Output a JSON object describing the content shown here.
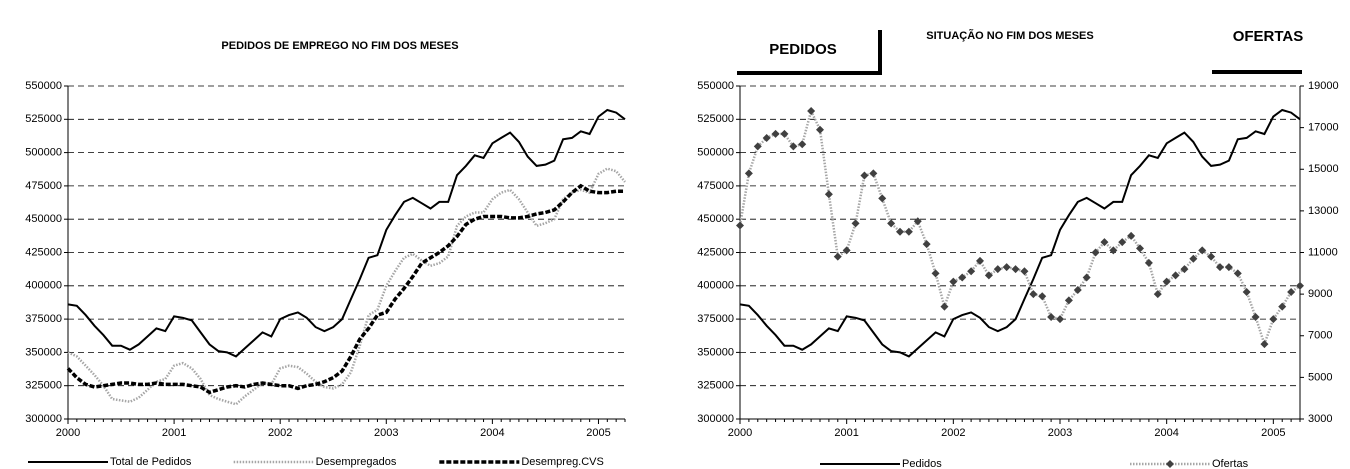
{
  "chart_data": [
    {
      "type": "line",
      "title": "PEDIDOS DE EMPREGO NO FIM DOS MESES",
      "categories": [
        "2000",
        null,
        null,
        null,
        null,
        null,
        null,
        null,
        null,
        null,
        null,
        null,
        "2001",
        null,
        null,
        null,
        null,
        null,
        null,
        null,
        null,
        null,
        null,
        null,
        "2002",
        null,
        null,
        null,
        null,
        null,
        null,
        null,
        null,
        null,
        null,
        null,
        "2003",
        null,
        null,
        null,
        null,
        null,
        null,
        null,
        null,
        null,
        null,
        null,
        "2004",
        null,
        null,
        null,
        null,
        null,
        null,
        null,
        null,
        null,
        null,
        null,
        "2005",
        null,
        null,
        null
      ],
      "ylim": [
        300000,
        550000
      ],
      "yticks": [
        300000,
        325000,
        350000,
        375000,
        400000,
        425000,
        450000,
        475000,
        500000,
        525000,
        550000
      ],
      "grid": true,
      "series": [
        {
          "name": "Total de Pedidos",
          "color": "#000000",
          "dash": "solid",
          "values": [
            386000,
            385000,
            378000,
            370000,
            363000,
            355000,
            355000,
            352000,
            356000,
            362000,
            368000,
            366000,
            377000,
            376000,
            374000,
            365000,
            356000,
            351000,
            350000,
            347000,
            353000,
            359000,
            365000,
            362000,
            375000,
            378000,
            380000,
            376000,
            369000,
            366000,
            369000,
            375000,
            390000,
            405000,
            421000,
            423000,
            442000,
            453000,
            463000,
            466000,
            462000,
            458000,
            463000,
            463000,
            483000,
            490000,
            498000,
            496000,
            507000,
            511000,
            515000,
            508000,
            497000,
            490000,
            491000,
            494000,
            510000,
            511000,
            516000,
            514000,
            527000,
            532000,
            530000,
            525000
          ]
        },
        {
          "name": "Desempregados",
          "color": "#a6a6a6",
          "dash": "dotted",
          "values": [
            350000,
            347000,
            340000,
            333000,
            325000,
            315000,
            314000,
            313000,
            316000,
            322000,
            328000,
            330000,
            340000,
            342000,
            338000,
            330000,
            318000,
            315000,
            313000,
            311000,
            317000,
            322000,
            327000,
            326000,
            338000,
            340000,
            339000,
            334000,
            328000,
            324000,
            323000,
            326000,
            335000,
            355000,
            378000,
            382000,
            400000,
            411000,
            421000,
            424000,
            419000,
            415000,
            417000,
            422000,
            445000,
            452000,
            455000,
            455000,
            465000,
            470000,
            472000,
            465000,
            455000,
            445000,
            447000,
            450000,
            465000,
            470000,
            472000,
            470000,
            484000,
            488000,
            486000,
            478000
          ]
        },
        {
          "name": "Desempreg.CVS",
          "color": "#000000",
          "dash": "dashed",
          "values": [
            338000,
            331000,
            326000,
            324000,
            325000,
            326000,
            327000,
            327000,
            326000,
            326000,
            327000,
            326000,
            326000,
            326000,
            325000,
            324000,
            320000,
            322000,
            324000,
            325000,
            324000,
            326000,
            327000,
            326000,
            325000,
            325000,
            323000,
            325000,
            326000,
            328000,
            331000,
            336000,
            347000,
            360000,
            368000,
            378000,
            380000,
            390000,
            398000,
            407000,
            417000,
            421000,
            425000,
            430000,
            437000,
            446000,
            450000,
            452000,
            452000,
            452000,
            451000,
            451000,
            452000,
            454000,
            455000,
            457000,
            463000,
            470000,
            475000,
            471000,
            470000,
            470000,
            471000,
            471000
          ]
        }
      ]
    },
    {
      "type": "line",
      "title": "SITUAÇÃO NO FIM DOS MESES",
      "left_label": "PEDIDOS",
      "right_label": "OFERTAS",
      "categories": [
        "2000",
        null,
        null,
        null,
        null,
        null,
        null,
        null,
        null,
        null,
        null,
        null,
        "2001",
        null,
        null,
        null,
        null,
        null,
        null,
        null,
        null,
        null,
        null,
        null,
        "2002",
        null,
        null,
        null,
        null,
        null,
        null,
        null,
        null,
        null,
        null,
        null,
        "2003",
        null,
        null,
        null,
        null,
        null,
        null,
        null,
        null,
        null,
        null,
        null,
        "2004",
        null,
        null,
        null,
        null,
        null,
        null,
        null,
        null,
        null,
        null,
        null,
        "2005",
        null,
        null,
        null
      ],
      "ylim": [
        300000,
        550000
      ],
      "yticks": [
        300000,
        325000,
        350000,
        375000,
        400000,
        425000,
        450000,
        475000,
        500000,
        525000,
        550000
      ],
      "y2lim": [
        3000,
        19000
      ],
      "y2ticks": [
        3000,
        5000,
        7000,
        9000,
        11000,
        13000,
        15000,
        17000,
        19000
      ],
      "grid": true,
      "series": [
        {
          "name": "Pedidos",
          "color": "#000000",
          "dash": "solid",
          "values": [
            386000,
            385000,
            378000,
            370000,
            363000,
            355000,
            355000,
            352000,
            356000,
            362000,
            368000,
            366000,
            377000,
            376000,
            374000,
            365000,
            356000,
            351000,
            350000,
            347000,
            353000,
            359000,
            365000,
            362000,
            375000,
            378000,
            380000,
            376000,
            369000,
            366000,
            369000,
            375000,
            390000,
            405000,
            421000,
            423000,
            442000,
            453000,
            463000,
            466000,
            462000,
            458000,
            463000,
            463000,
            483000,
            490000,
            498000,
            496000,
            507000,
            511000,
            515000,
            508000,
            497000,
            490000,
            491000,
            494000,
            510000,
            511000,
            516000,
            514000,
            527000,
            532000,
            530000,
            525000
          ]
        },
        {
          "name": "Ofertas",
          "color": "#a6a6a6",
          "marker_color": "#404040",
          "dash": "dotted",
          "axis": "y2",
          "values": [
            12300,
            14800,
            16100,
            16500,
            16700,
            16700,
            16100,
            16200,
            17800,
            16900,
            13800,
            10800,
            11100,
            12400,
            14700,
            14800,
            13600,
            12400,
            12000,
            12000,
            12500,
            11400,
            10000,
            8400,
            9600,
            9800,
            10100,
            10600,
            9900,
            10200,
            10300,
            10200,
            10100,
            9000,
            8900,
            7900,
            7800,
            8700,
            9200,
            9800,
            11000,
            11500,
            11100,
            11500,
            11800,
            11200,
            10500,
            9000,
            9600,
            9900,
            10200,
            10700,
            11100,
            10800,
            10300,
            10300,
            10000,
            9100,
            7900,
            6600,
            7800,
            8400,
            9100,
            9400
          ]
        }
      ]
    }
  ]
}
